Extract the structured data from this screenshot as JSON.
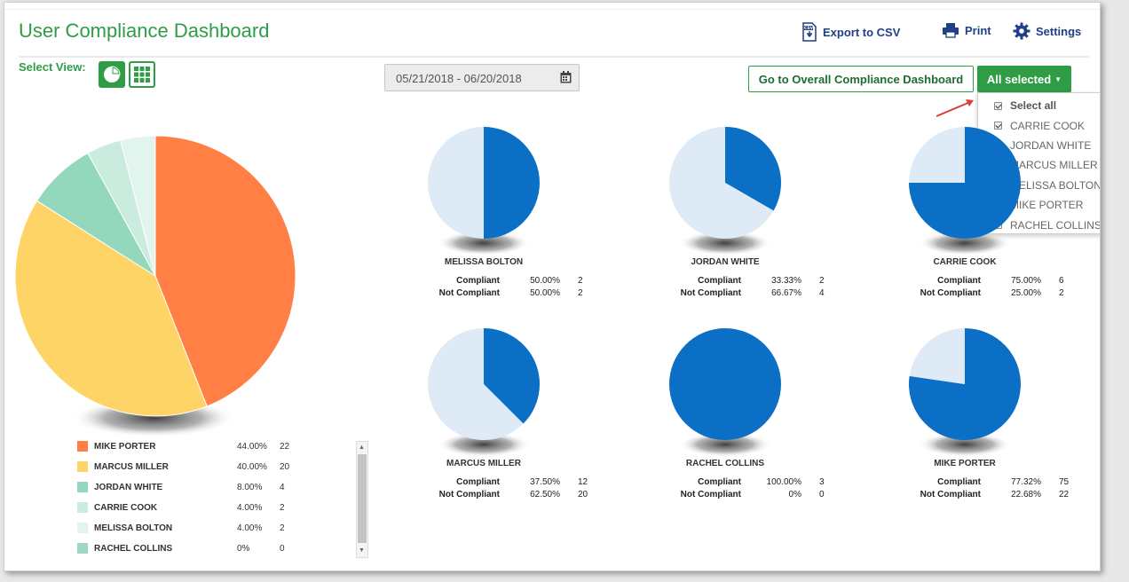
{
  "header": {
    "title": "User Compliance Dashboard",
    "select_view_label": "Select View:",
    "export_label": "Export to CSV",
    "print_label": "Print",
    "settings_label": "Settings"
  },
  "filters": {
    "date_range": "05/21/2018 - 06/20/2018",
    "overall_button": "Go to Overall Compliance Dashboard",
    "users_button": "All selected"
  },
  "dropdown": {
    "select_all": "Select all",
    "users": [
      "CARRIE COOK",
      "JORDAN WHITE",
      "MARCUS MILLER",
      "MELISSA BOLTON",
      "MIKE PORTER",
      "RACHEL COLLINS"
    ]
  },
  "colors": {
    "brand_green": "#2f9c46",
    "compliant_blue": "#0a6fc5",
    "noncompliant_lightblue": "#deebf7"
  },
  "chart_data": [
    {
      "type": "pie",
      "series": [
        {
          "name": "MIKE PORTER",
          "pct": "44.00%",
          "count": 22,
          "value": 22,
          "color": "#ff7f45"
        },
        {
          "name": "MARCUS MILLER",
          "pct": "40.00%",
          "count": 20,
          "value": 20,
          "color": "#ffd467"
        },
        {
          "name": "JORDAN WHITE",
          "pct": "8.00%",
          "count": 4,
          "value": 4,
          "color": "#93d8bc"
        },
        {
          "name": "CARRIE COOK",
          "pct": "4.00%",
          "count": 2,
          "value": 2,
          "color": "#c9ecdf"
        },
        {
          "name": "MELISSA BOLTON",
          "pct": "4.00%",
          "count": 2,
          "value": 2,
          "color": "#e2f4ee"
        },
        {
          "name": "RACHEL COLLINS",
          "pct": "0%",
          "count": 0,
          "value": 0,
          "color": "#9fd8c2"
        }
      ]
    },
    {
      "type": "pie",
      "title": "MELISSA BOLTON",
      "compliant_label": "Compliant",
      "not_compliant_label": "Not Compliant",
      "compliant_pct": "50.00%",
      "compliant_count": 2,
      "not_compliant_pct": "50.00%",
      "not_compliant_count": 2
    },
    {
      "type": "pie",
      "title": "JORDAN WHITE",
      "compliant_label": "Compliant",
      "not_compliant_label": "Not Compliant",
      "compliant_pct": "33.33%",
      "compliant_count": 2,
      "not_compliant_pct": "66.67%",
      "not_compliant_count": 4
    },
    {
      "type": "pie",
      "title": "CARRIE COOK",
      "compliant_label": "Compliant",
      "not_compliant_label": "Not Compliant",
      "compliant_pct": "75.00%",
      "compliant_count": 6,
      "not_compliant_pct": "25.00%",
      "not_compliant_count": 2
    },
    {
      "type": "pie",
      "title": "MARCUS MILLER",
      "compliant_label": "Compliant",
      "not_compliant_label": "Not Compliant",
      "compliant_pct": "37.50%",
      "compliant_count": 12,
      "not_compliant_pct": "62.50%",
      "not_compliant_count": 20
    },
    {
      "type": "pie",
      "title": "RACHEL COLLINS",
      "compliant_label": "Compliant",
      "not_compliant_label": "Not Compliant",
      "compliant_pct": "100.00%",
      "compliant_count": 3,
      "not_compliant_pct": "0%",
      "not_compliant_count": 0
    },
    {
      "type": "pie",
      "title": "MIKE PORTER",
      "compliant_label": "Compliant",
      "not_compliant_label": "Not Compliant",
      "compliant_pct": "77.32%",
      "compliant_count": 75,
      "not_compliant_pct": "22.68%",
      "not_compliant_count": 22
    }
  ]
}
